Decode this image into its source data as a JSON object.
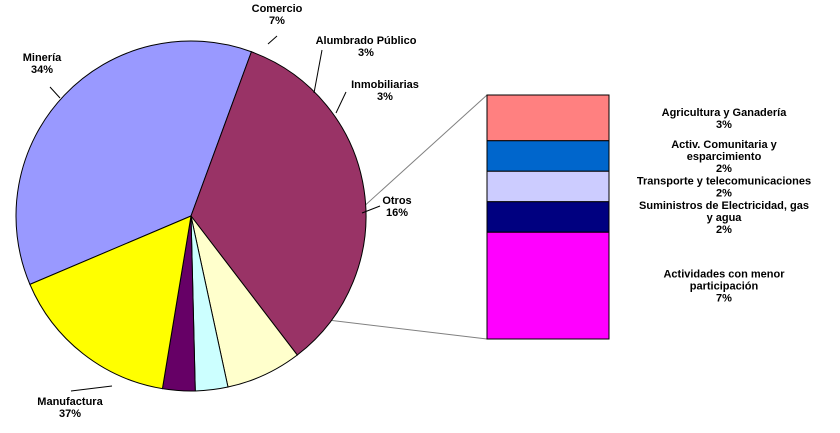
{
  "chart_data": {
    "type": "pie",
    "title": "",
    "colors": {
      "outline": "#000000",
      "leader": "#000000",
      "connector": "#808080"
    },
    "slices": [
      {
        "label": "Manufactura",
        "value": 37,
        "pct_label": "37%",
        "color": "#9999ff"
      },
      {
        "label": "Minería",
        "value": 34,
        "pct_label": "34%",
        "color": "#993366"
      },
      {
        "label": "Comercio",
        "value": 7,
        "pct_label": "7%",
        "color": "#ffffcc"
      },
      {
        "label": "Alumbrado Público",
        "value": 3,
        "pct_label": "3%",
        "color": "#ccffff"
      },
      {
        "label": "Inmobiliarias",
        "value": 3,
        "pct_label": "3%",
        "color": "#660066"
      },
      {
        "label": "Otros",
        "value": 16,
        "pct_label": "16%",
        "color": "#ffff00"
      }
    ],
    "breakdown": {
      "of_slice": "Otros",
      "type": "stacked-bar",
      "segments": [
        {
          "label_lines": [
            "Agricultura y Ganadería"
          ],
          "pct_label": "3%",
          "value": 3,
          "color": "#ff8080"
        },
        {
          "label_lines": [
            "Activ. Comunitaria y",
            "esparcimiento"
          ],
          "pct_label": "2%",
          "value": 2,
          "color": "#0066cc"
        },
        {
          "label_lines": [
            "Transporte y telecomunicaciones"
          ],
          "pct_label": "2%",
          "value": 2,
          "color": "#ccccff"
        },
        {
          "label_lines": [
            "Suministros de Electricidad, gas",
            "y agua"
          ],
          "pct_label": "2%",
          "value": 2,
          "color": "#000080"
        },
        {
          "label_lines": [
            "Actividades con menor",
            "participación"
          ],
          "pct_label": "7%",
          "value": 7,
          "color": "#ff00ff"
        }
      ]
    }
  }
}
